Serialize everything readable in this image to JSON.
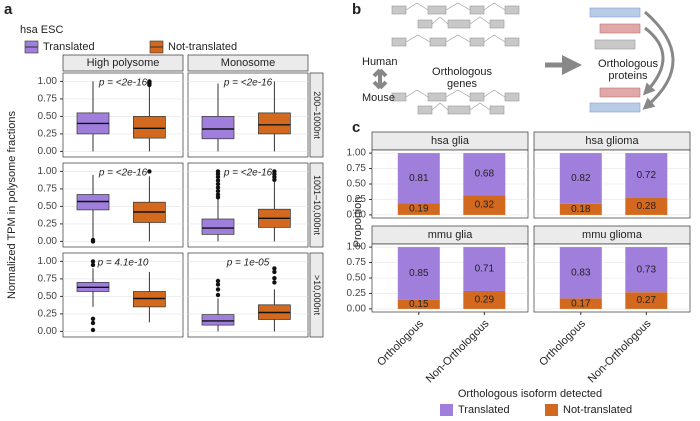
{
  "panel_labels": [
    "a",
    "b",
    "c"
  ],
  "diagram": {
    "species": [
      "Human",
      "Mouse"
    ],
    "genes_label": [
      "Orthologous",
      "genes"
    ],
    "proteins_label": [
      "Orthologous",
      "proteins"
    ]
  },
  "chart_data": [
    {
      "type": "box",
      "legend_title": "hsa ESC",
      "ylabel": "Normalized TPM in polysome fractions",
      "series": [
        {
          "name": "Translated",
          "color": "#9f7fdb"
        },
        {
          "name": "Not-translated",
          "color": "#d2691e"
        }
      ],
      "columns": [
        "High polysome",
        "Monosome"
      ],
      "rows": [
        "200–1000nt",
        "1001–10,000nt",
        ">10,000nt"
      ],
      "ylim": [
        -0.08,
        1.12
      ],
      "yticks": [
        {
          "value": 0,
          "label": "0.00"
        },
        {
          "value": 0.25,
          "label": "0.25"
        },
        {
          "value": 0.5,
          "label": "0.50"
        },
        {
          "value": 0.75,
          "label": "0.75"
        },
        {
          "value": 1,
          "label": "1.00"
        }
      ],
      "grid": true,
      "facets": [
        [
          {
            "annotation": "p = <2e-16",
            "boxes": [
              {
                "whislo": 0,
                "q1": 0.25,
                "med": 0.4,
                "q3": 0.55,
                "whishi": 1.0,
                "fliers": []
              },
              {
                "whislo": 0,
                "q1": 0.19,
                "med": 0.33,
                "q3": 0.5,
                "whishi": 0.93,
                "fliers": [
                  0.95,
                  0.97,
                  0.99,
                  1.0
                ]
              }
            ]
          },
          {
            "annotation": "p = <2e-16",
            "boxes": [
              {
                "whislo": 0,
                "q1": 0.18,
                "med": 0.32,
                "q3": 0.5,
                "whishi": 0.97,
                "fliers": []
              },
              {
                "whislo": 0,
                "q1": 0.25,
                "med": 0.38,
                "q3": 0.55,
                "whishi": 1.0,
                "fliers": []
              }
            ]
          }
        ],
        [
          {
            "annotation": "p = <2e-16",
            "boxes": [
              {
                "whislo": 0.05,
                "q1": 0.45,
                "med": 0.57,
                "q3": 0.67,
                "whishi": 0.95,
                "fliers": [
                  0.02,
                  0.0
                ]
              },
              {
                "whislo": 0,
                "q1": 0.27,
                "med": 0.42,
                "q3": 0.56,
                "whishi": 0.93,
                "fliers": [
                  1.0
                ]
              }
            ]
          },
          {
            "annotation": "p = <2e-16",
            "boxes": [
              {
                "whislo": 0,
                "q1": 0.1,
                "med": 0.19,
                "q3": 0.32,
                "whishi": 0.6,
                "fliers": [
                  0.63,
                  0.67,
                  0.72,
                  0.77,
                  0.82,
                  0.87,
                  0.92,
                  0.96,
                  1.0
                ]
              },
              {
                "whislo": 0,
                "q1": 0.2,
                "med": 0.33,
                "q3": 0.46,
                "whishi": 0.85,
                "fliers": [
                  0.88,
                  0.92,
                  0.96,
                  1.0
                ]
              }
            ]
          }
        ],
        [
          {
            "annotation": "p = 4.1e-10",
            "boxes": [
              {
                "whislo": 0.35,
                "q1": 0.57,
                "med": 0.63,
                "q3": 0.7,
                "whishi": 0.9,
                "fliers": [
                  0.95,
                  1.0,
                  0.18,
                  0.12,
                  0.02
                ]
              },
              {
                "whislo": 0.13,
                "q1": 0.35,
                "med": 0.47,
                "q3": 0.57,
                "whishi": 0.85,
                "fliers": []
              }
            ]
          },
          {
            "annotation": "p = 1e-05",
            "boxes": [
              {
                "whislo": 0,
                "q1": 0.09,
                "med": 0.15,
                "q3": 0.24,
                "whishi": 0.47,
                "fliers": [
                  0.52,
                  0.6,
                  0.67,
                  0.72
                ]
              },
              {
                "whislo": 0,
                "q1": 0.17,
                "med": 0.27,
                "q3": 0.38,
                "whishi": 0.6,
                "fliers": [
                  0.7,
                  0.76,
                  0.85,
                  0.9
                ]
              }
            ]
          }
        ]
      ]
    },
    {
      "type": "stacked_bar",
      "ylabel": "Proportion",
      "xlabel": "Orthologous isoform detected",
      "categories": [
        "Orthologous",
        "Non-Orthologous"
      ],
      "series": [
        {
          "name": "Translated",
          "color": "#9f7fdb"
        },
        {
          "name": "Not-translated",
          "color": "#d2691e"
        }
      ],
      "ylim": [
        -0.05,
        1.05
      ],
      "yticks": [
        {
          "value": 0,
          "label": "0.00"
        },
        {
          "value": 0.25,
          "label": "0.25"
        },
        {
          "value": 0.5,
          "label": "0.50"
        },
        {
          "value": 0.75,
          "label": "0.75"
        },
        {
          "value": 1,
          "label": "1.00"
        }
      ],
      "grid": true,
      "facets": [
        [
          {
            "title": "hsa glia",
            "values": [
              [
                0.81,
                0.68
              ],
              [
                0.19,
                0.32
              ]
            ]
          },
          {
            "title": "hsa glioma",
            "values": [
              [
                0.82,
                0.72
              ],
              [
                0.18,
                0.28
              ]
            ]
          }
        ],
        [
          {
            "title": "mmu glia",
            "values": [
              [
                0.85,
                0.71
              ],
              [
                0.15,
                0.29
              ]
            ]
          },
          {
            "title": "mmu glioma",
            "values": [
              [
                0.83,
                0.73
              ],
              [
                0.17,
                0.27
              ]
            ]
          }
        ]
      ]
    }
  ]
}
